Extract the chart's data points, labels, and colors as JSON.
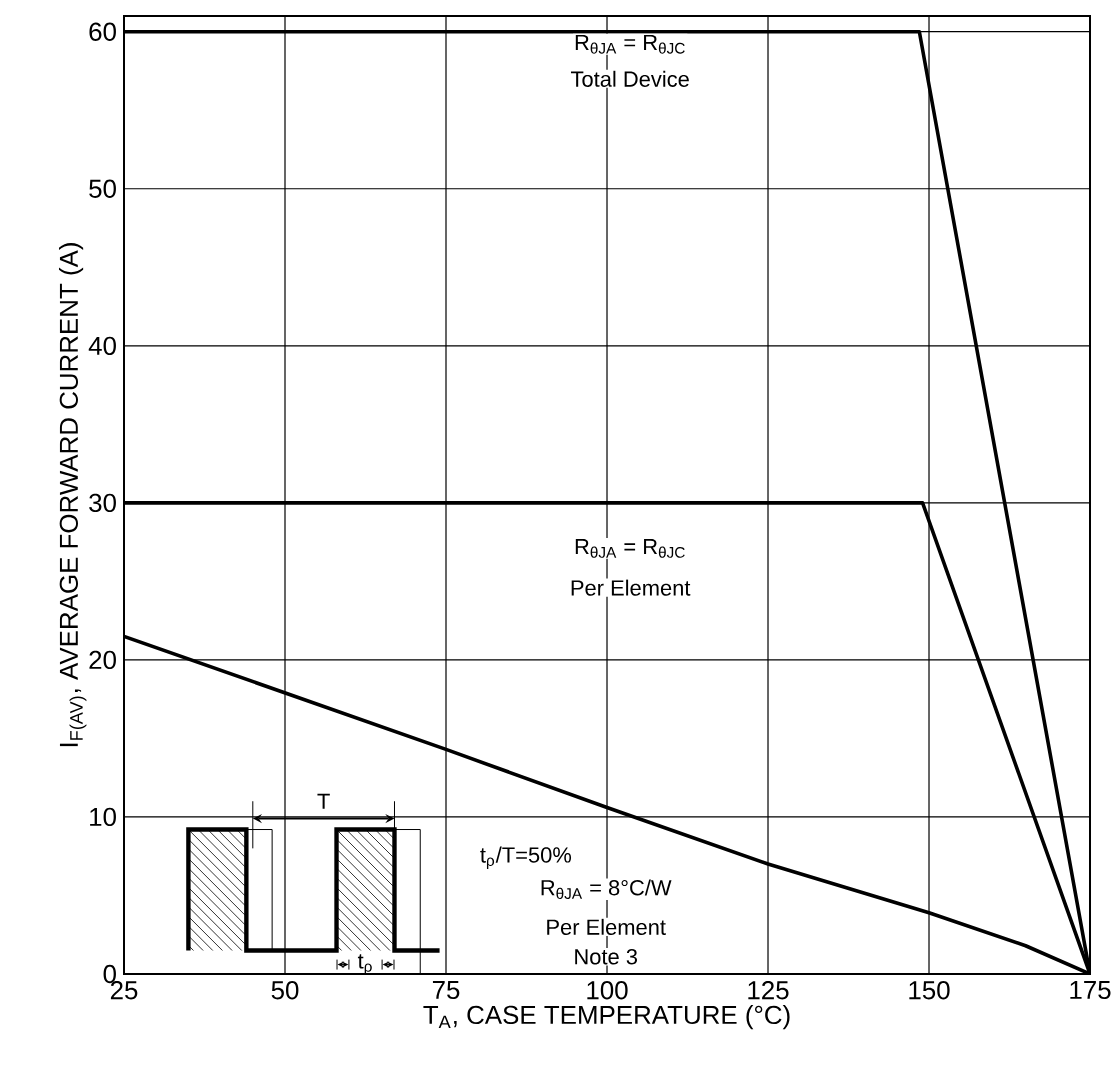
{
  "chart_data": {
    "type": "line",
    "xlabel": "T$_{A}$, CASE TEMPERATURE (°C)",
    "ylabel": "I$_{F(AV)}$, AVERAGE FORWARD CURRENT (A)",
    "xlim": [
      25,
      175
    ],
    "ylim": [
      0,
      61
    ],
    "xticks": [
      25,
      50,
      75,
      100,
      125,
      150,
      175
    ],
    "yticks": [
      0,
      10,
      20,
      30,
      40,
      50,
      60
    ],
    "grid": true,
    "marker": "none",
    "line_style": "solid",
    "series": [
      {
        "color": "#000000",
        "x": [
          25,
          148.5,
          175
        ],
        "values": [
          60,
          60,
          0
        ]
      },
      {
        "color": "#000000",
        "x": [
          25,
          149,
          175
        ],
        "values": [
          30,
          30,
          0
        ]
      },
      {
        "color": "#000000",
        "x": [
          25,
          50,
          75,
          100,
          125,
          150,
          165,
          175
        ],
        "values": [
          21.5,
          17.9,
          14.3,
          10.6,
          7.0,
          3.9,
          1.8,
          0
        ]
      }
    ],
    "annotations": [
      "R$_{θJA}$ = R$_{θJC}$",
      "Total Device",
      "R$_{θJA}$ = R$_{θJC}$",
      "Per Element",
      "R$_{θJA}$ = 8°C/W",
      "Per Element",
      "Note 3",
      "t$_{ρ}$/T=50%",
      "T",
      "t$_{ρ}$"
    ]
  }
}
